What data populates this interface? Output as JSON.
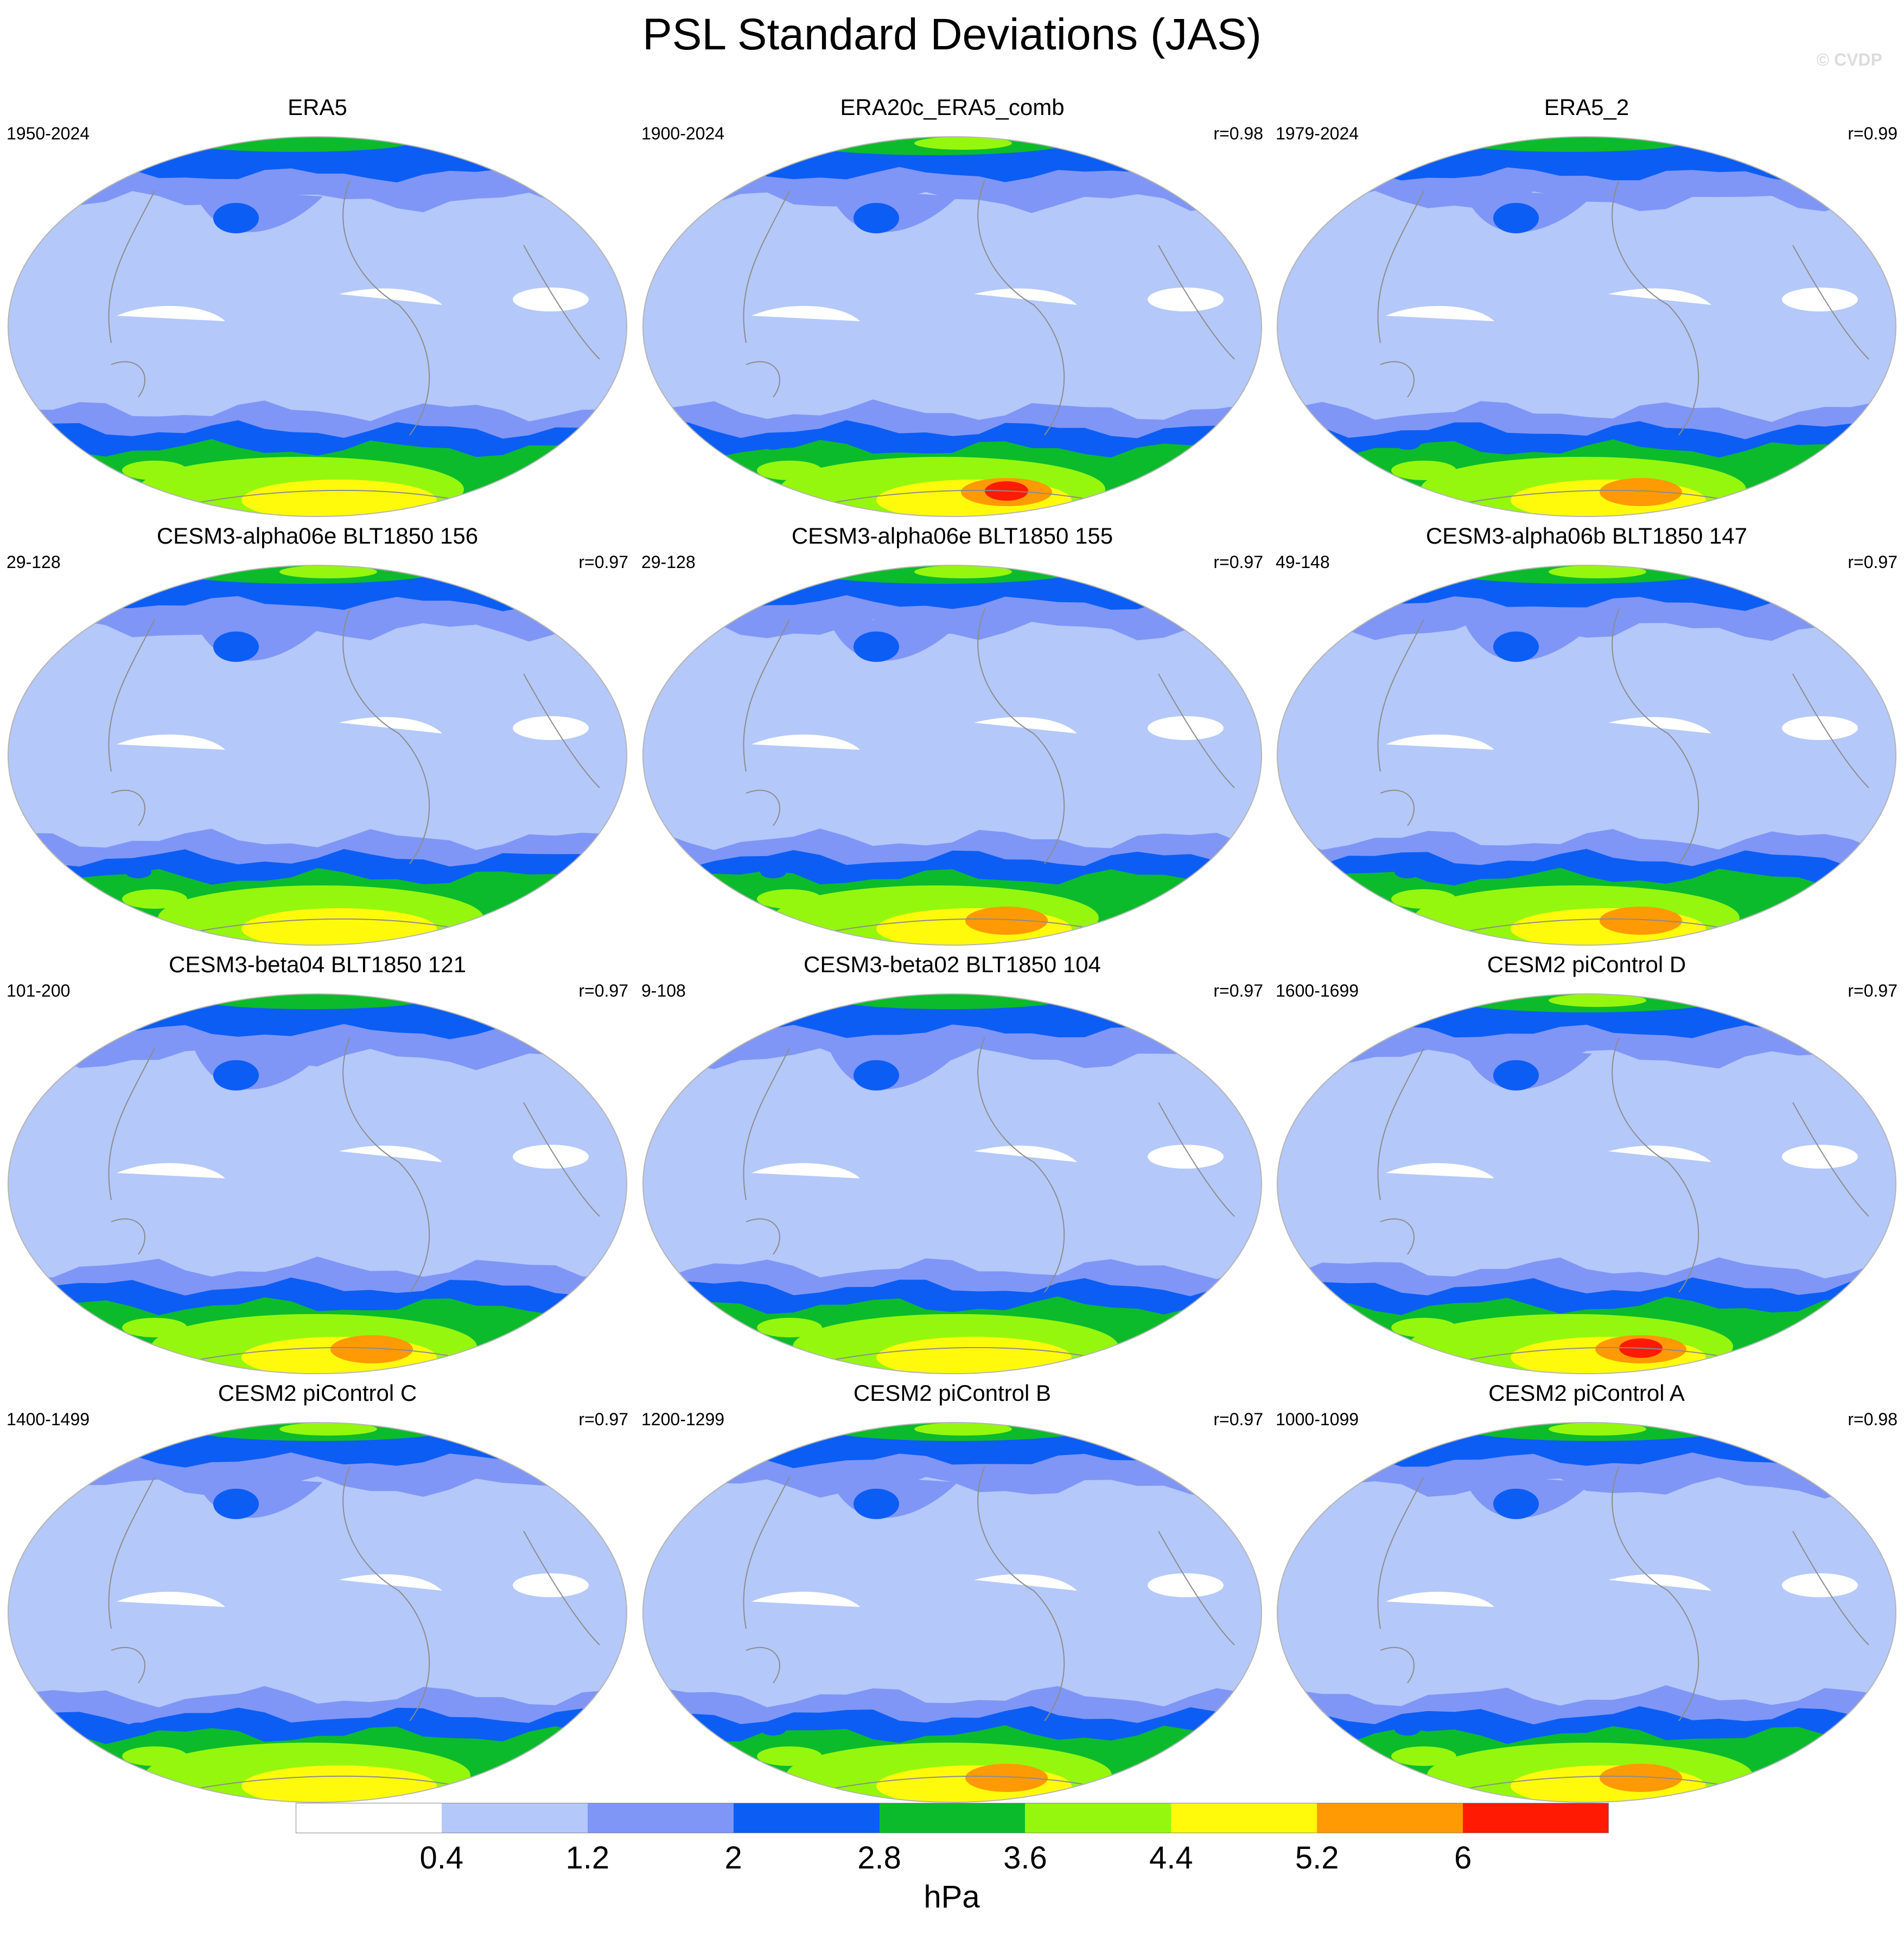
{
  "title": "PSL Standard Deviations (JAS)",
  "watermark": "© CVDP",
  "units": "hPa",
  "colors": {
    "levels": [
      "#ffffff",
      "#b4c8fa",
      "#7f96f6",
      "#0c5df4",
      "#0bbb2c",
      "#95f70e",
      "#fffa0c",
      "#ff9a04",
      "#ff1a03"
    ],
    "coast": "#8c8c8c",
    "frame": "#b4b4b4"
  },
  "colorbar": {
    "labels": [
      "0.4",
      "1.2",
      "2",
      "2.8",
      "3.6",
      "4.4",
      "5.2",
      "6"
    ]
  },
  "panels": [
    {
      "title": "ERA5",
      "period": "1950-2024",
      "corr": "",
      "variant": 0,
      "nh": 0,
      "sh": 1
    },
    {
      "title": "ERA20c_ERA5_comb",
      "period": "1900-2024",
      "corr": "r=0.98",
      "variant": 1,
      "nh": 1,
      "sh": 3
    },
    {
      "title": "ERA5_2",
      "period": "1979-2024",
      "corr": "r=0.99",
      "variant": 2,
      "nh": 0,
      "sh": 2
    },
    {
      "title": "CESM3-alpha06e BLT1850 156",
      "period": "29-128",
      "corr": "r=0.97",
      "variant": 3,
      "nh": 1,
      "sh": 1
    },
    {
      "title": "CESM3-alpha06e BLT1850 155",
      "period": "29-128",
      "corr": "r=0.97",
      "variant": 4,
      "nh": 1,
      "sh": 2
    },
    {
      "title": "CESM3-alpha06b BLT1850 147",
      "period": "49-148",
      "corr": "r=0.97",
      "variant": 5,
      "nh": 1,
      "sh": 2
    },
    {
      "title": "CESM3-beta04 BLT1850 121",
      "period": "101-200",
      "corr": "r=0.97",
      "variant": 6,
      "nh": 0,
      "sh": 2
    },
    {
      "title": "CESM3-beta02 BLT1850 104",
      "period": "9-108",
      "corr": "r=0.97",
      "variant": 7,
      "nh": 0,
      "sh": 1
    },
    {
      "title": "CESM2 piControl D",
      "period": "1600-1699",
      "corr": "r=0.97",
      "variant": 8,
      "nh": 1,
      "sh": 3
    },
    {
      "title": "CESM2 piControl C",
      "period": "1400-1499",
      "corr": "r=0.97",
      "variant": 9,
      "nh": 1,
      "sh": 1
    },
    {
      "title": "CESM2 piControl B",
      "period": "1200-1299",
      "corr": "r=0.97",
      "variant": 10,
      "nh": 1,
      "sh": 2
    },
    {
      "title": "CESM2 piControl A",
      "period": "1000-1099",
      "corr": "r=0.98",
      "variant": 11,
      "nh": 1,
      "sh": 2
    }
  ]
}
